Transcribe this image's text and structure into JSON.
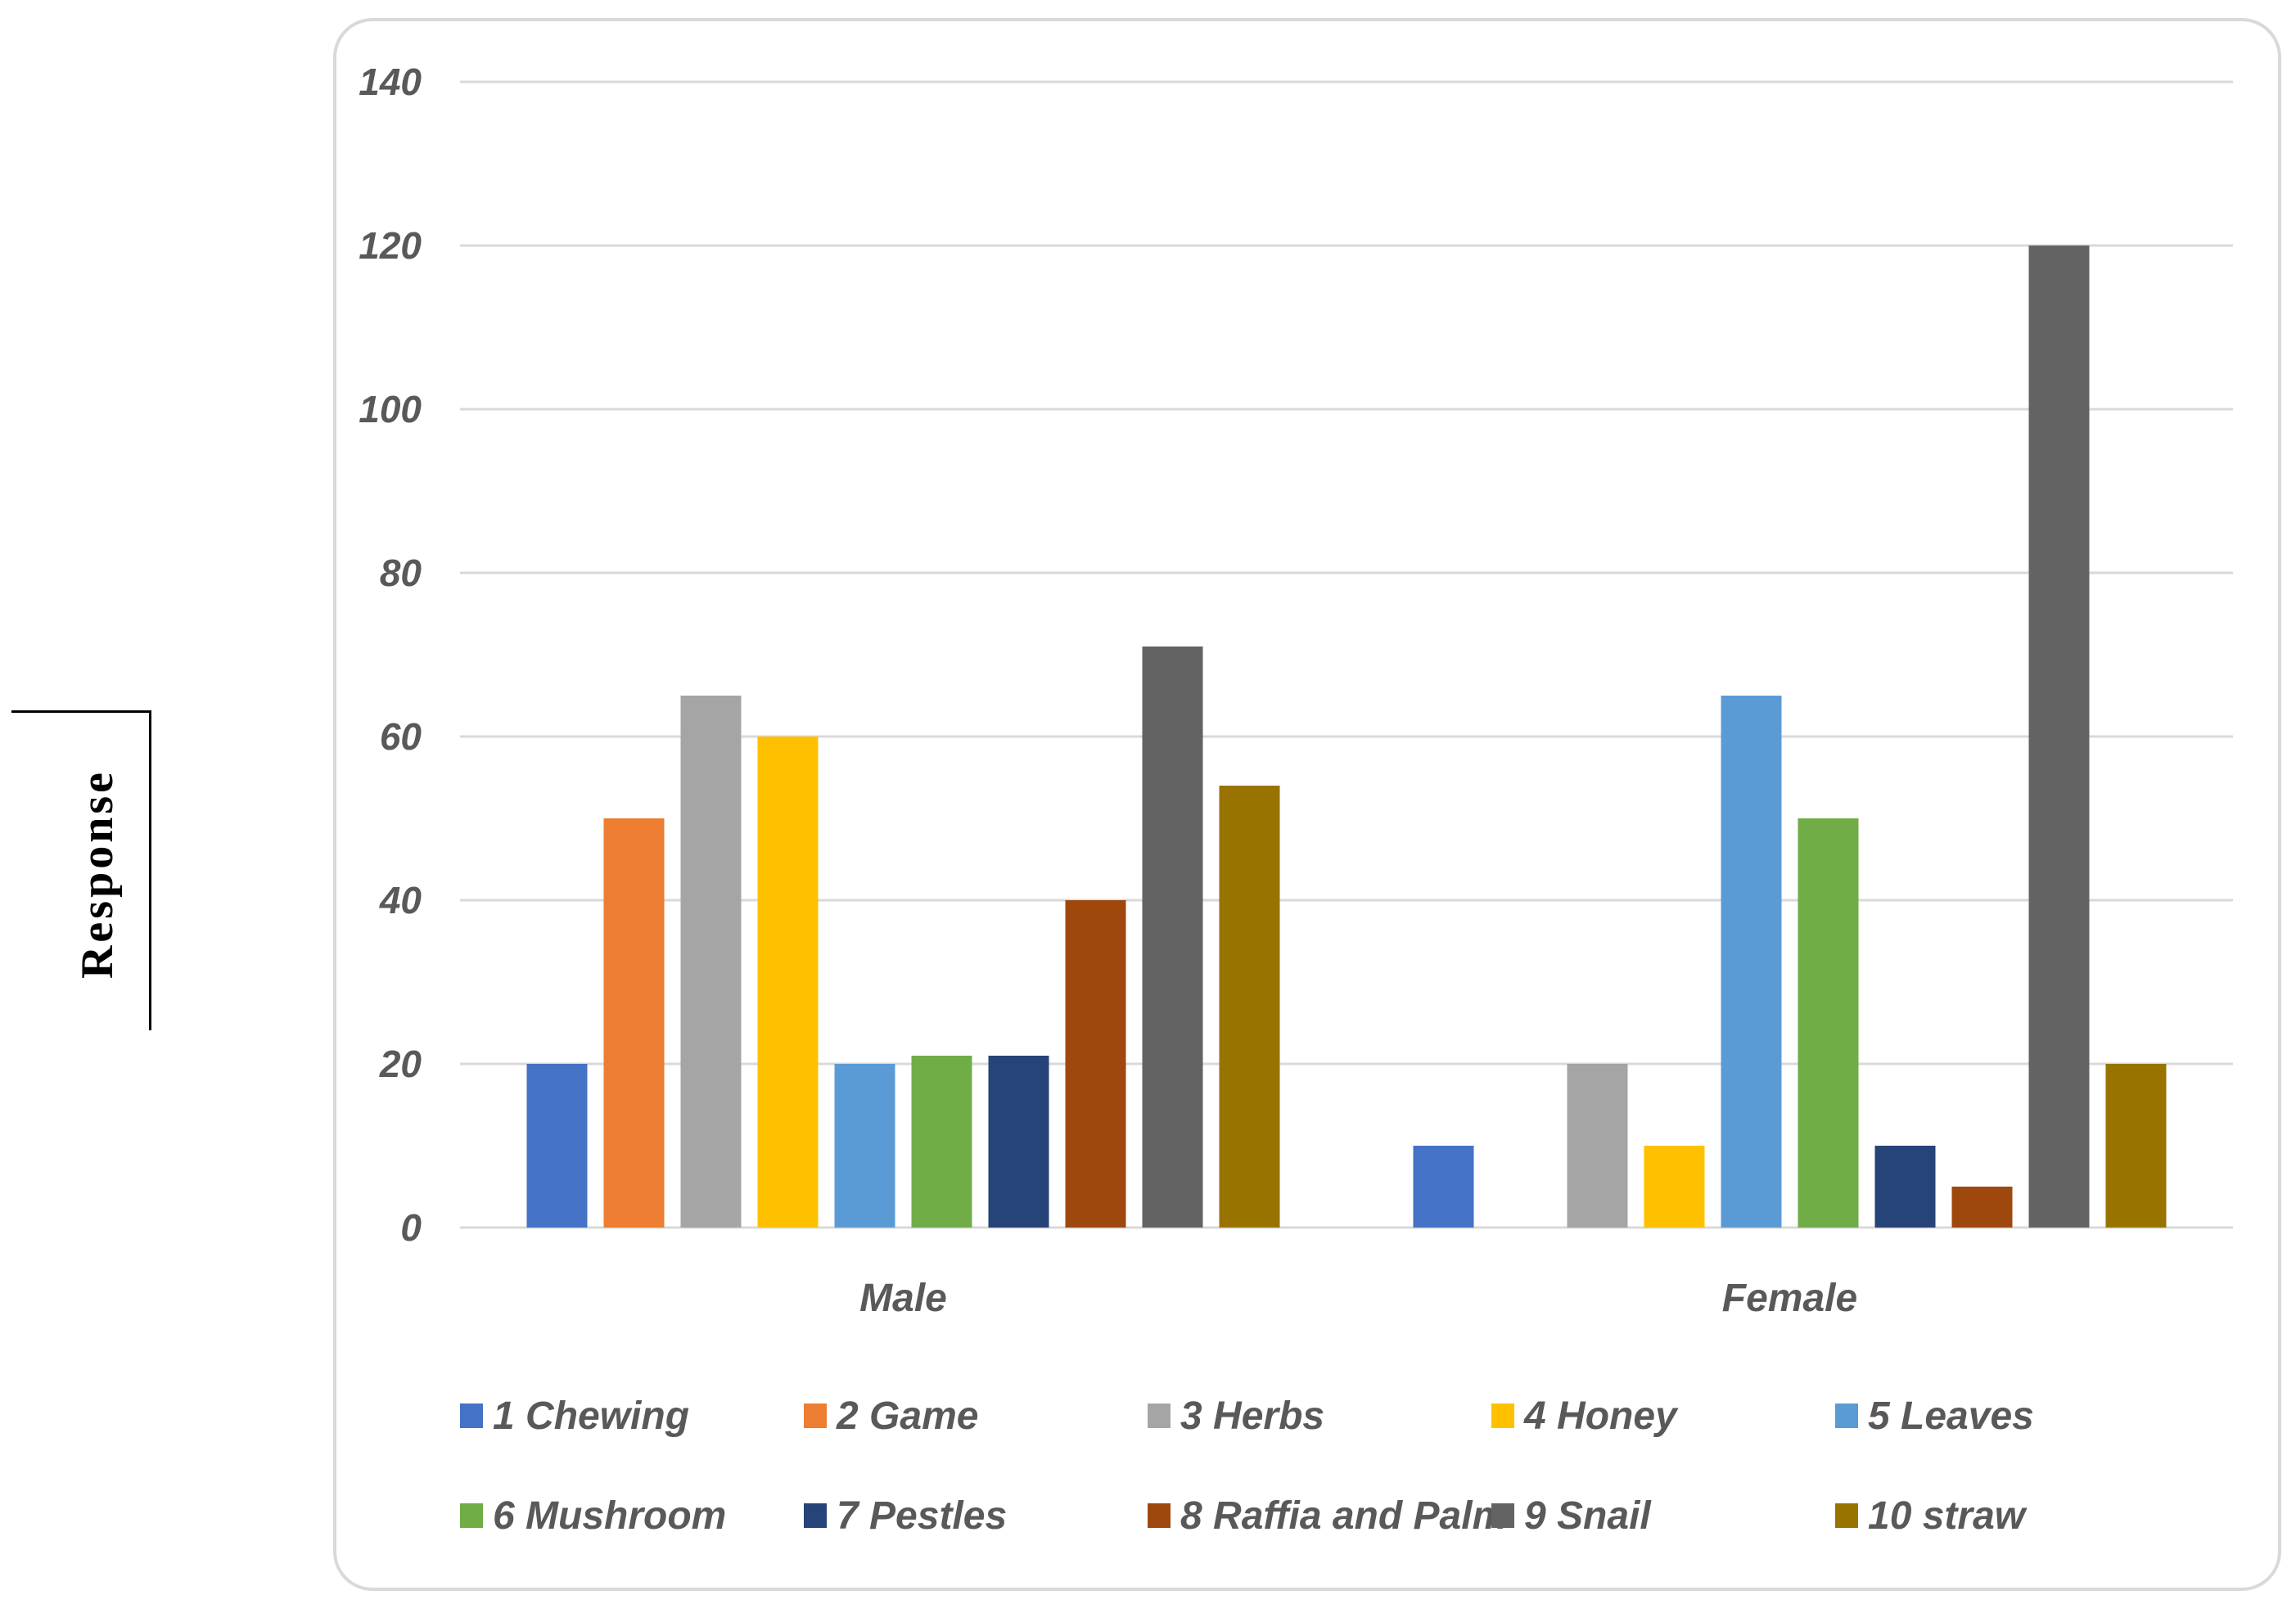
{
  "chart_data": {
    "type": "bar",
    "title": "",
    "xlabel": "",
    "ylabel": "Response",
    "ylim": [
      0,
      140
    ],
    "yticks": [
      0,
      20,
      40,
      60,
      80,
      100,
      120,
      140
    ],
    "grid": true,
    "legend_position": "bottom",
    "categories": [
      "Male",
      "Female"
    ],
    "series": [
      {
        "name": "1 Chewing",
        "color": "#4472c4",
        "values": [
          20,
          10
        ]
      },
      {
        "name": "2 Game",
        "color": "#ed7d31",
        "values": [
          50,
          0
        ]
      },
      {
        "name": "3 Herbs",
        "color": "#a5a5a5",
        "values": [
          65,
          20
        ]
      },
      {
        "name": "4 Honey",
        "color": "#ffc000",
        "values": [
          60,
          10
        ]
      },
      {
        "name": "5 Leaves",
        "color": "#5b9bd5",
        "values": [
          20,
          65
        ]
      },
      {
        "name": "6 Mushroom",
        "color": "#70ad47",
        "values": [
          21,
          50
        ]
      },
      {
        "name": "7 Pestles",
        "color": "#264478",
        "values": [
          21,
          10
        ]
      },
      {
        "name": "8 Raffia and Palm",
        "color": "#9e480e",
        "values": [
          40,
          5
        ]
      },
      {
        "name": "9 Snail",
        "color": "#636363",
        "values": [
          71,
          120
        ]
      },
      {
        "name": "10 straw",
        "color": "#997300",
        "values": [
          54,
          20
        ]
      }
    ]
  },
  "colors": {
    "grid": "#d9d9d9",
    "text": "#595959",
    "frame": "#d9d9d9"
  }
}
